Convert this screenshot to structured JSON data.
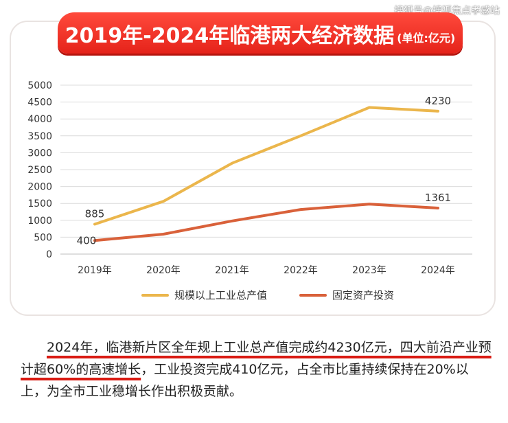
{
  "watermark": "搜狐号@搜狐焦点孝感站",
  "chart_title": "2019年-2024年临港两大经济数据",
  "chart_unit": "(单位:亿元)",
  "chart_data": {
    "type": "line",
    "title": "2019年-2024年临港两大经济数据",
    "subtitle": "(单位:亿元)",
    "categories": [
      "2019年",
      "2020年",
      "2021年",
      "2022年",
      "2023年",
      "2024年"
    ],
    "series": [
      {
        "name": "规模以上工业总产值",
        "values": [
          885,
          1560,
          2690,
          3500,
          4340,
          4230
        ],
        "color": "#ebb64c",
        "labels": {
          "0": "885",
          "5": "4230"
        }
      },
      {
        "name": "固定资产投资",
        "values": [
          400,
          590,
          980,
          1320,
          1480,
          1361
        ],
        "color": "#d9613a",
        "labels": {
          "0": "400",
          "5": "1361"
        }
      }
    ],
    "ylim": [
      0,
      5000
    ],
    "yticks": [
      0,
      500,
      1000,
      1500,
      2000,
      2500,
      3000,
      3500,
      4000,
      4500,
      5000
    ],
    "grid": true,
    "legend": "bottom"
  },
  "caption": {
    "highlight_1": "2024年，临港新片区全年规上工业总产值完成约4230亿元，四大前沿产业预计超60%的高速增长",
    "rest": "，工业投资完成410亿元，占全市比重持续保持在20%以上，为全市工业稳增长作出积极贡献。"
  }
}
